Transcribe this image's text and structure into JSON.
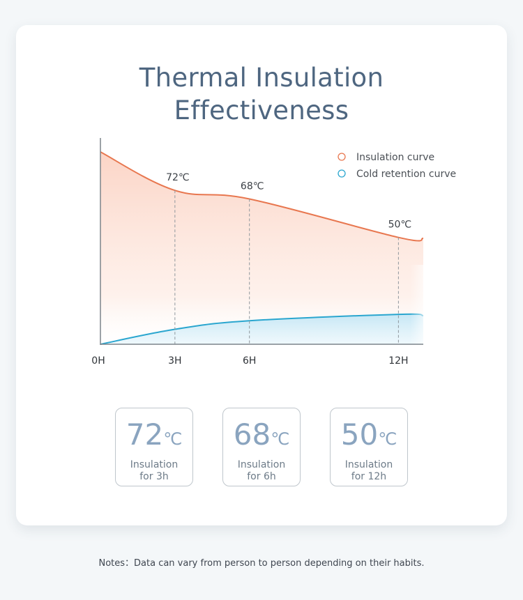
{
  "title": {
    "line1": "Thermal Insulation",
    "line2": "Effectiveness"
  },
  "chart_data": {
    "type": "line",
    "x": [
      0,
      3,
      6,
      12
    ],
    "x_tick_labels": [
      "0H",
      "3H",
      "6H",
      "12H"
    ],
    "xlim": [
      0,
      13
    ],
    "ylim": [
      0,
      90
    ],
    "series": [
      {
        "name": "Insulation curve",
        "color": "#e8774f",
        "x": [
          0,
          3,
          6,
          12
        ],
        "y": [
          90,
          72,
          68,
          50
        ],
        "point_labels": [
          "",
          "72℃",
          "68℃",
          "50℃"
        ]
      },
      {
        "name": "Cold retention curve",
        "color": "#2aa6cf",
        "x": [
          0,
          3,
          6,
          12
        ],
        "y": [
          0,
          7,
          11,
          14
        ],
        "point_labels": [
          "",
          "",
          "",
          ""
        ]
      }
    ],
    "legend_position": "top-right",
    "grid": false
  },
  "stats": [
    {
      "value": "72",
      "unit": "℃",
      "line1": "Insulation",
      "line2": "for 3h"
    },
    {
      "value": "68",
      "unit": "℃",
      "line1": "Insulation",
      "line2": "for 6h"
    },
    {
      "value": "50",
      "unit": "℃",
      "line1": "Insulation",
      "line2": "for 12h"
    }
  ],
  "notes": "Notes：Data can vary from person to person depending on their habits."
}
